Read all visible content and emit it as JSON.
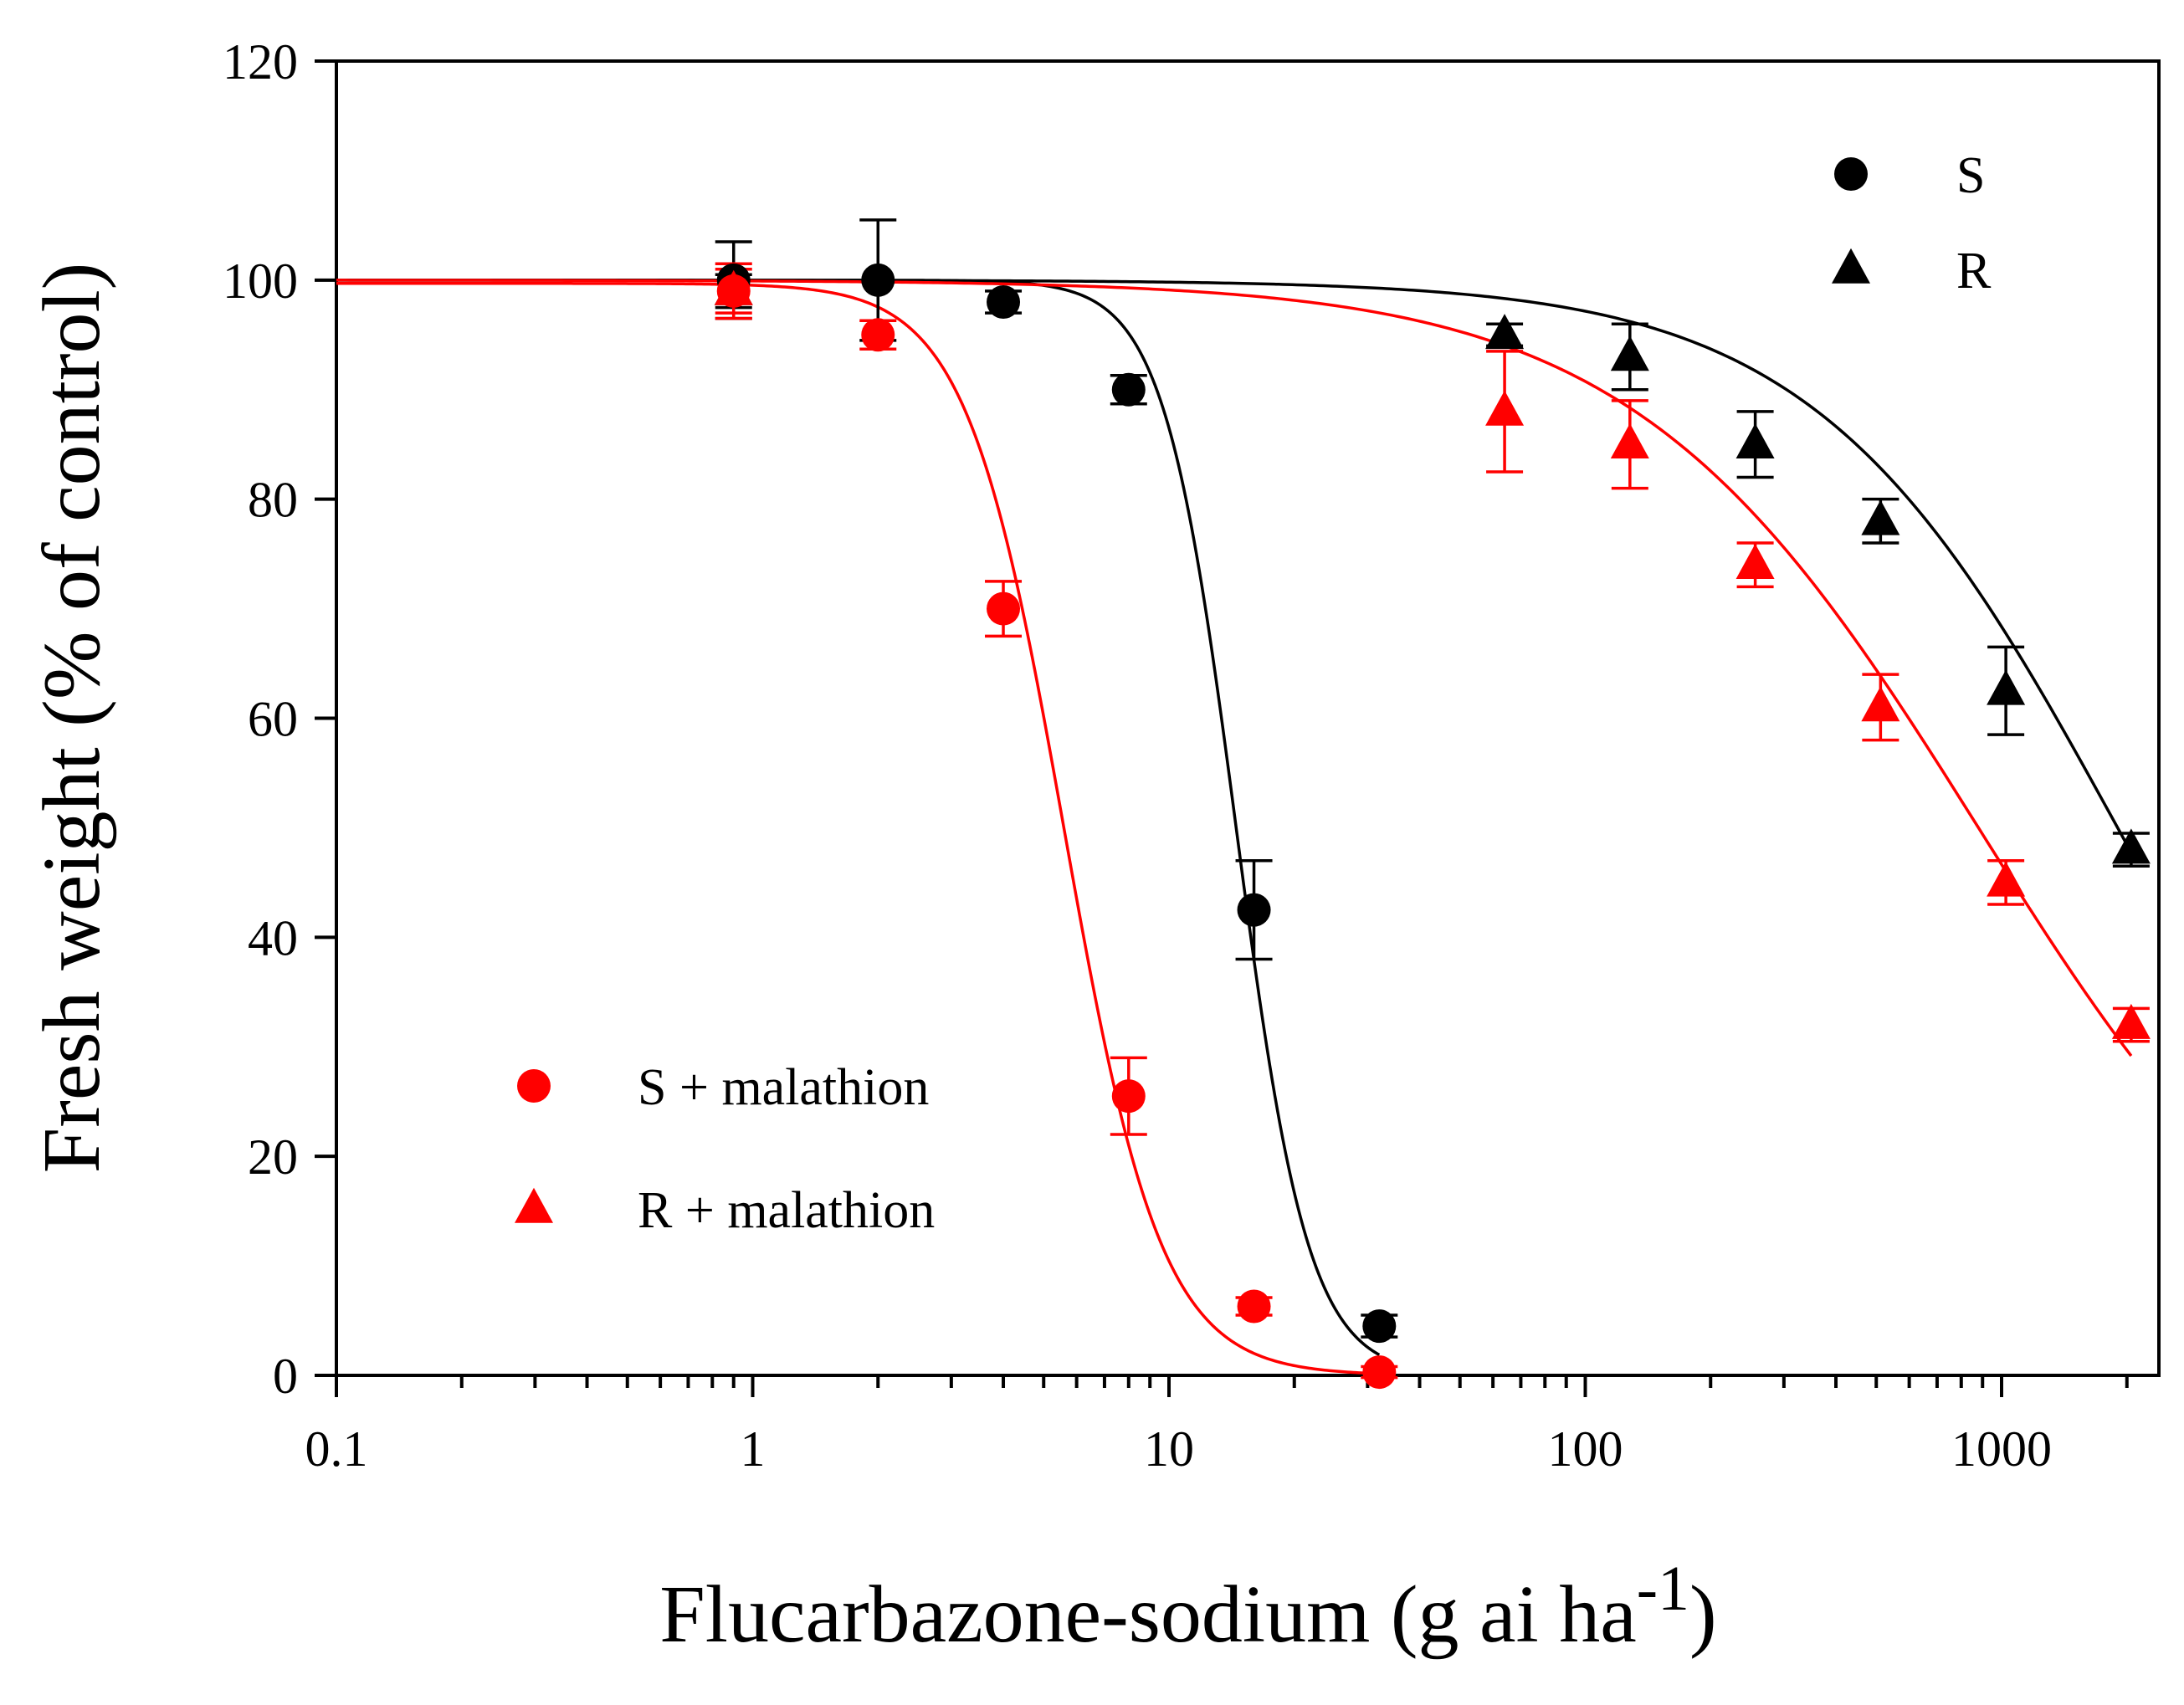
{
  "chart_data": {
    "type": "scatter",
    "title": "",
    "xlabel": "Flucarbazone-sodium (g ai ha",
    "xlabel_superscript": "-1",
    "xlabel_suffix": ")",
    "ylabel": "Fresh weight (% of control)",
    "xscale": "log",
    "xlim": [
      0.1,
      2500
    ],
    "ylim": [
      0,
      120
    ],
    "grid": false,
    "x_ticks": [
      {
        "value": 0.1,
        "label": "0.1"
      },
      {
        "value": 1,
        "label": "1"
      },
      {
        "value": 10,
        "label": "10"
      },
      {
        "value": 100,
        "label": "100"
      },
      {
        "value": 1000,
        "label": "1000"
      }
    ],
    "y_ticks": [
      {
        "value": 0,
        "label": "0"
      },
      {
        "value": 20,
        "label": "20"
      },
      {
        "value": 40,
        "label": "40"
      },
      {
        "value": 60,
        "label": "60"
      },
      {
        "value": 80,
        "label": "80"
      },
      {
        "value": 100,
        "label": "100"
      },
      {
        "value": 120,
        "label": "120"
      }
    ],
    "series": [
      {
        "name": "S",
        "marker": "circle",
        "color": "#000000",
        "legend": "top-right",
        "x": [
          0.9,
          2,
          4,
          8,
          16,
          32
        ],
        "y": [
          100,
          100,
          98,
          90,
          42.5,
          4.5
        ],
        "err": [
          3.5,
          5.5,
          1,
          1.3,
          4.5,
          1
        ],
        "fit": {
          "top": 100,
          "bottom": 0,
          "ec50": 14.5,
          "slope": 5.0
        }
      },
      {
        "name": "R",
        "marker": "triangle",
        "color": "#000000",
        "legend": "top-right",
        "x": [
          0.9,
          64,
          128,
          256,
          512,
          1024,
          2048
        ],
        "y": [
          99,
          95,
          93,
          85,
          78,
          62.5,
          48
        ],
        "err": [
          1.5,
          1,
          3,
          3,
          2,
          4,
          1.5
        ],
        "fit": {
          "top": 100,
          "bottom": 0,
          "ec50": 1900,
          "slope": 1.2
        }
      },
      {
        "name": "S + malathion",
        "marker": "circle",
        "color": "#ff0000",
        "legend": "bottom-left",
        "x": [
          0.9,
          2,
          4,
          8,
          16,
          32
        ],
        "y": [
          99,
          95,
          70,
          25.5,
          6.3,
          0.3
        ],
        "err": [
          2.5,
          1.3,
          2.5,
          3.5,
          0.8,
          0.5
        ],
        "fit": {
          "top": 99.7,
          "bottom": 0,
          "ec50": 5.6,
          "slope": 3.7
        }
      },
      {
        "name": "R + malathion",
        "marker": "triangle",
        "color": "#ff0000",
        "legend": "bottom-left",
        "x": [
          0.9,
          64,
          128,
          256,
          512,
          1024,
          2048
        ],
        "y": [
          99,
          88,
          85,
          74,
          61,
          45,
          32
        ],
        "err": [
          2,
          5.5,
          4,
          2,
          3,
          2,
          1.5
        ],
        "fit": {
          "top": 100,
          "bottom": 0,
          "ec50": 880,
          "slope": 1.05
        }
      }
    ]
  }
}
